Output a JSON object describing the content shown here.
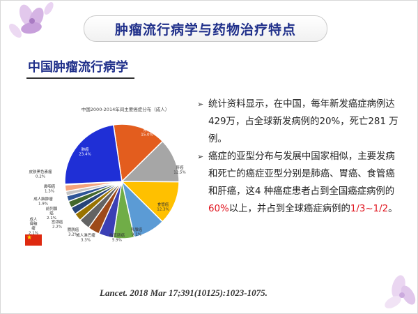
{
  "slide": {
    "title": "肿瘤流行病学与药物治疗特点",
    "subtitle": "中国肿瘤流行病学",
    "citation": "Lancet. 2018 Mar 17;391(10125):1023-1075."
  },
  "bullets": [
    {
      "parts": [
        {
          "text": "统计资料显示，在中国，每年新发癌症病例达429万，占全球新发病例的20%，死亡281 万例。",
          "highlight": false
        }
      ]
    },
    {
      "parts": [
        {
          "text": "癌症的亚型分布与发展中国家相似，主要发病和死亡的癌症亚型分别是肺癌、胃癌、食管癌和肝癌，这4 种癌症患者占到全国癌症病例的",
          "highlight": false
        },
        {
          "text": "60%",
          "highlight": true
        },
        {
          "text": "以上，并占到全球癌症病例的",
          "highlight": false
        },
        {
          "text": "1/3~1/2",
          "highlight": true
        },
        {
          "text": "。",
          "highlight": false
        }
      ]
    }
  ],
  "colors": {
    "title_text": "#1f2f8a",
    "highlight": "#e0141e"
  },
  "chart_data": {
    "type": "pie",
    "title": "中国2000-2014年间主要癌症分布（成人）",
    "slices": [
      {
        "label": "胃癌",
        "value": 15.0,
        "color": "#e35d1e"
      },
      {
        "label": "肝癌",
        "value": 12.5,
        "color": "#a6a6a6"
      },
      {
        "label": "食管癌",
        "value": 12.3,
        "color": "#ffc000"
      },
      {
        "label": "乳腺癌",
        "value": 9.1,
        "color": "#5b9bd5"
      },
      {
        "label": "结直肠癌",
        "value": 5.9,
        "color": "#70ad47"
      },
      {
        "label": "",
        "value": 4.2,
        "color": "#3b3fb5"
      },
      {
        "label": "成人淋巴瘤",
        "value": 3.3,
        "color": "#9e4a1a"
      },
      {
        "label": "膀胱癌",
        "value": 3.2,
        "color": "#636363"
      },
      {
        "label": "宫颈癌",
        "value": 2.2,
        "color": "#997300"
      },
      {
        "label": "前列腺癌",
        "value": 2.1,
        "color": "#264478"
      },
      {
        "label": "成人脑肿瘤",
        "value": 1.9,
        "color": "#43682b"
      },
      {
        "label": "",
        "value": 1.6,
        "color": "#2e5597"
      },
      {
        "label": "鼻咽癌",
        "value": 1.3,
        "color": "#c4c4c4"
      },
      {
        "label": "",
        "value": 1.8,
        "color": "#f4a37c"
      },
      {
        "label": "皮肤黑色素瘤",
        "value": 0.2,
        "color": "#ffd966"
      },
      {
        "label": "肺癌",
        "value": 23.4,
        "color": "#1f2fd6"
      }
    ],
    "labels": [
      {
        "lines": [
          "胃癌",
          "15.0%"
        ]
      },
      {
        "lines": [
          "肝癌",
          "12.5%"
        ]
      },
      {
        "lines": [
          "食管癌",
          "12.3%"
        ]
      },
      {
        "lines": [
          "乳腺癌",
          "9.1%"
        ]
      },
      {
        "lines": [
          "结直肠癌",
          "5.9%"
        ]
      },
      {
        "lines": [
          "成人淋巴瘤",
          "3.3%"
        ]
      },
      {
        "lines": [
          "膀胱癌",
          "3.2%"
        ]
      },
      {
        "lines": [
          "宫颈癌",
          "2.2%"
        ]
      },
      {
        "lines": [
          "前列腺",
          "癌",
          "2.1%"
        ]
      },
      {
        "lines": [
          "成人",
          "骨髓",
          "瘤",
          "2.1%"
        ]
      },
      {
        "lines": [
          "成人脑肿瘤",
          "1.9%"
        ]
      },
      {
        "lines": [
          "鼻咽癌",
          "1.3%"
        ]
      },
      {
        "lines": [
          "皮肤黑色素瘤",
          "0.2%"
        ]
      },
      {
        "lines": [
          "肺癌",
          "23.4%"
        ]
      }
    ]
  }
}
